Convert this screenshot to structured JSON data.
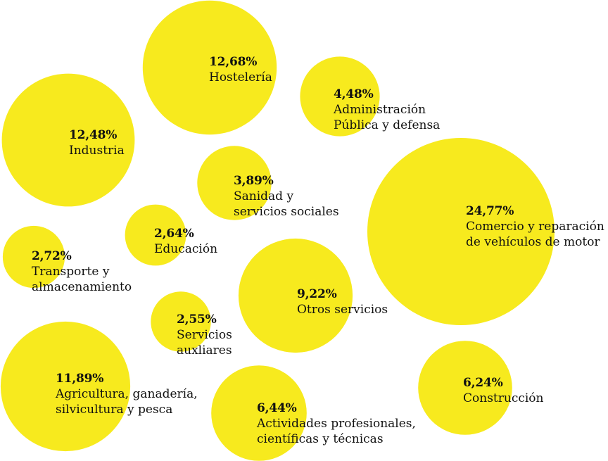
{
  "chart_data": {
    "type": "bubble",
    "color": "#F7EA1E",
    "text_color": "#111111",
    "items": [
      {
        "value": 12.68,
        "value_label": "12,68%",
        "label": "Hostelería"
      },
      {
        "value": 4.48,
        "value_label": "4,48%",
        "label": "Administración\nPública y defensa"
      },
      {
        "value": 12.48,
        "value_label": "12,48%",
        "label": "Industria"
      },
      {
        "value": 3.89,
        "value_label": "3,89%",
        "label": "Sanidad y\nservicios sociales"
      },
      {
        "value": 24.77,
        "value_label": "24,77%",
        "label": "Comercio y reparación\nde vehículos de motor"
      },
      {
        "value": 2.64,
        "value_label": "2,64%",
        "label": "Educación"
      },
      {
        "value": 2.72,
        "value_label": "2,72%",
        "label": "Transporte y\nalmacenamiento"
      },
      {
        "value": 9.22,
        "value_label": "9,22%",
        "label": "Otros servicios"
      },
      {
        "value": 2.55,
        "value_label": "2,55%",
        "label": "Servicios\nauxliares"
      },
      {
        "value": 11.89,
        "value_label": "11,89%",
        "label": "Agricultura, ganadería,\nsilvicultura y pesca"
      },
      {
        "value": 6.44,
        "value_label": "6,44%",
        "label": "Actividades profesionales,\ncientíficas y técnicas"
      },
      {
        "value": 6.24,
        "value_label": "6,24%",
        "label": "Construcción"
      }
    ]
  }
}
